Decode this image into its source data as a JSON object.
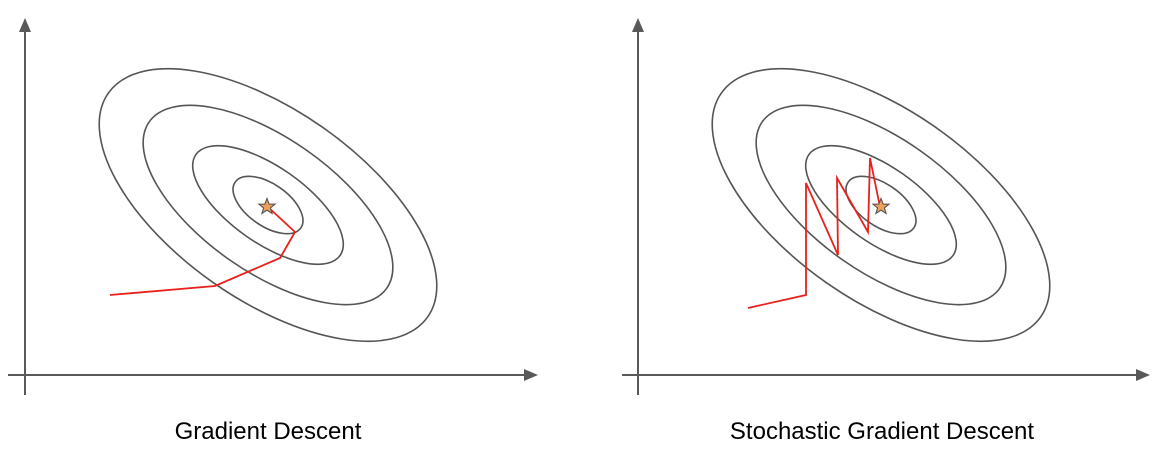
{
  "colors": {
    "axis": "#595959",
    "contour": "#555555",
    "path": "#e8211c",
    "star_fill": "#f0a05a",
    "star_stroke": "#555555"
  },
  "panels": [
    {
      "caption": "Gradient Descent",
      "contour_count": 4,
      "marker": "star-icon",
      "optimizer_path": "smooth"
    },
    {
      "caption": "Stochastic Gradient Descent",
      "contour_count": 4,
      "marker": "star-icon",
      "optimizer_path": "zigzag"
    }
  ]
}
